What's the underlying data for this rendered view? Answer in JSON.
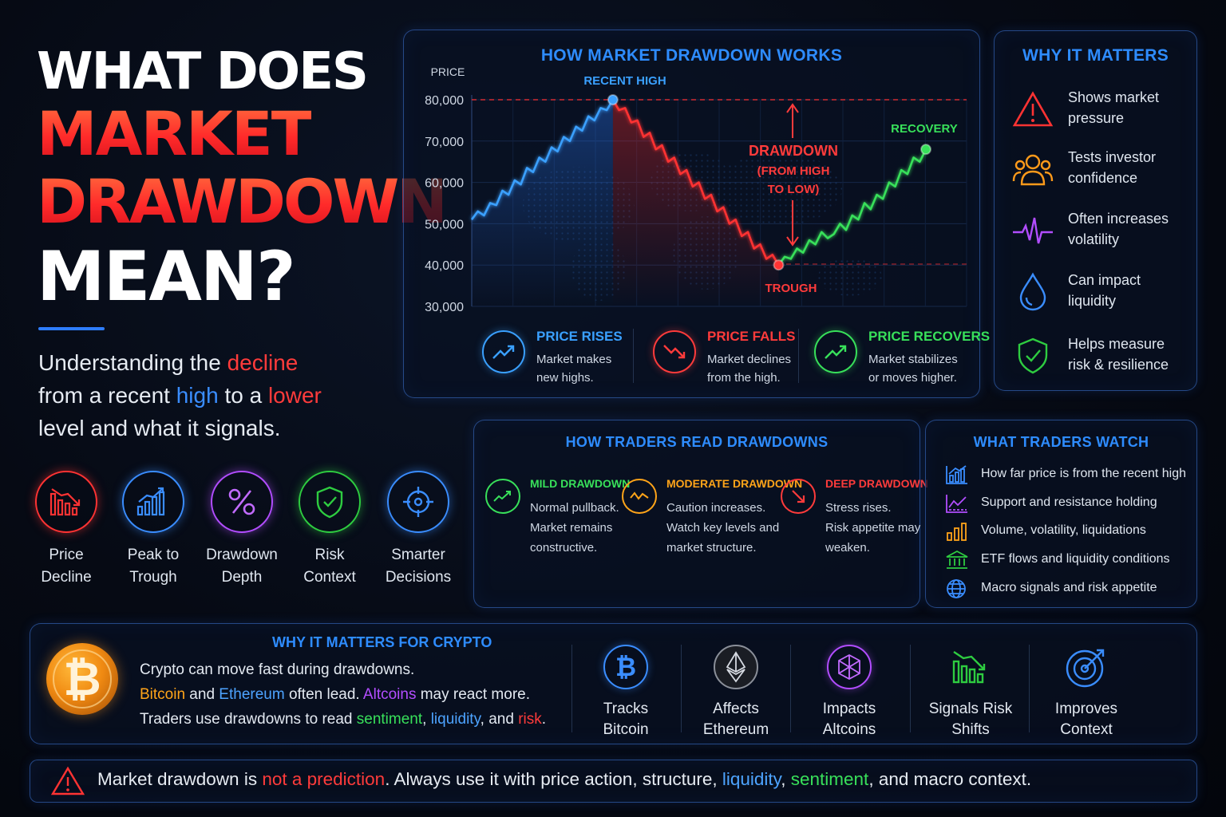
{
  "hero": {
    "line1": "WHAT DOES",
    "line2": "MARKET",
    "line3": "DRAWDOWN",
    "line4": "MEAN?",
    "sub_part1": "Understanding the ",
    "sub_decline": "decline",
    "sub_part2": "from a recent ",
    "sub_high": "high",
    "sub_part3": " to a ",
    "sub_lower": "lower",
    "sub_part4": "level and what it signals."
  },
  "concepts": [
    {
      "line1": "Price",
      "line2": "Decline",
      "icon": "bar-decline-icon",
      "color": "#ff3333"
    },
    {
      "line1": "Peak to",
      "line2": "Trough",
      "icon": "bar-growth-icon",
      "color": "#3a8dff"
    },
    {
      "line1": "Drawdown",
      "line2": "Depth",
      "icon": "percent-icon",
      "color": "#b24dff"
    },
    {
      "line1": "Risk",
      "line2": "Context",
      "icon": "shield-check-icon",
      "color": "#2ecc40"
    },
    {
      "line1": "Smarter",
      "line2": "Decisions",
      "icon": "target-icon",
      "color": "#3a8dff"
    }
  ],
  "chart_panel": {
    "title": "HOW MARKET DRAWDOWN WORKS",
    "ylabel": "PRICE",
    "ann_recent_high": "RECENT HIGH",
    "ann_recovery": "RECOVERY",
    "ann_drawdown": "DRAWDOWN",
    "ann_from_high": "(FROM HIGH",
    "ann_to_low": "TO LOW)",
    "ann_trough": "TROUGH",
    "legend": [
      {
        "title": "PRICE RISES",
        "line1": "Market makes",
        "line2": "new highs.",
        "color": "#3aa0ff"
      },
      {
        "title": "PRICE FALLS",
        "line1": "Market declines",
        "line2": "from the high.",
        "color": "#ff3b3b"
      },
      {
        "title": "PRICE RECOVERS",
        "line1": "Market stabilizes",
        "line2": "or moves higher.",
        "color": "#38e05a"
      }
    ]
  },
  "chart_data": {
    "type": "line",
    "title": "HOW MARKET DRAWDOWN WORKS",
    "ylabel": "PRICE",
    "xlabel": "",
    "yticks": [
      "80,000",
      "70,000",
      "60,000",
      "50,000",
      "40,000",
      "30,000"
    ],
    "ylim": [
      30000,
      80000
    ],
    "grid": true,
    "series": [
      {
        "name": "",
        "color": "#3aa0ff",
        "points": [
          [
            0,
            51000
          ],
          [
            1,
            53000
          ],
          [
            2,
            52000
          ],
          [
            3,
            55000
          ],
          [
            4,
            54500
          ],
          [
            5,
            58000
          ],
          [
            6,
            57000
          ],
          [
            7,
            60500
          ],
          [
            8,
            59500
          ],
          [
            9,
            63500
          ],
          [
            10,
            62500
          ],
          [
            11,
            66000
          ],
          [
            12,
            65000
          ],
          [
            13,
            68500
          ],
          [
            14,
            67500
          ],
          [
            15,
            71000
          ],
          [
            16,
            70000
          ],
          [
            17,
            73500
          ],
          [
            18,
            72500
          ],
          [
            19,
            76000
          ],
          [
            20,
            75000
          ],
          [
            21,
            78000
          ],
          [
            22,
            77500
          ],
          [
            23,
            80000
          ]
        ]
      },
      {
        "name": "",
        "color": "#ff3333",
        "points": [
          [
            23,
            80000
          ],
          [
            24,
            77500
          ],
          [
            25,
            78000
          ],
          [
            26,
            74500
          ],
          [
            27,
            75000
          ],
          [
            28,
            71000
          ],
          [
            29,
            72000
          ],
          [
            30,
            68000
          ],
          [
            31,
            69000
          ],
          [
            32,
            65000
          ],
          [
            33,
            66000
          ],
          [
            34,
            62000
          ],
          [
            35,
            63000
          ],
          [
            36,
            59000
          ],
          [
            37,
            60000
          ],
          [
            38,
            56000
          ],
          [
            39,
            57000
          ],
          [
            40,
            53000
          ],
          [
            41,
            54000
          ],
          [
            42,
            50000
          ],
          [
            43,
            51000
          ],
          [
            44,
            47000
          ],
          [
            45,
            48000
          ],
          [
            46,
            44000
          ],
          [
            47,
            45000
          ],
          [
            48,
            41500
          ],
          [
            49,
            42500
          ],
          [
            50,
            40000
          ]
        ]
      },
      {
        "name": "",
        "color": "#38e05a",
        "points": [
          [
            50,
            40000
          ],
          [
            51,
            42000
          ],
          [
            52,
            41500
          ],
          [
            53,
            44000
          ],
          [
            54,
            43000
          ],
          [
            55,
            46000
          ],
          [
            56,
            45000
          ],
          [
            57,
            48000
          ],
          [
            58,
            46500
          ],
          [
            59,
            47500
          ],
          [
            60,
            50000
          ],
          [
            61,
            48500
          ],
          [
            62,
            52000
          ],
          [
            63,
            51000
          ],
          [
            64,
            55000
          ],
          [
            65,
            53500
          ],
          [
            66,
            57000
          ],
          [
            67,
            56000
          ],
          [
            68,
            60000
          ],
          [
            69,
            59000
          ],
          [
            70,
            63000
          ],
          [
            71,
            62000
          ],
          [
            72,
            66000
          ],
          [
            73,
            65000
          ],
          [
            74,
            68000
          ]
        ]
      }
    ],
    "annotations": [
      "RECENT HIGH",
      "RECOVERY",
      "DRAWDOWN",
      "(FROM HIGH",
      "TO LOW)",
      "TROUGH"
    ]
  },
  "why_matters": {
    "title": "WHY IT MATTERS",
    "items": [
      {
        "line1": "Shows market",
        "line2": "pressure",
        "icon": "warning-triangle-icon",
        "color": "#ff3333"
      },
      {
        "line1": "Tests investor",
        "line2": "confidence",
        "icon": "people-icon",
        "color": "#ff9a1a"
      },
      {
        "line1": "Often increases",
        "line2": "volatility",
        "icon": "pulse-icon",
        "color": "#b24dff"
      },
      {
        "line1": "Can impact",
        "line2": "liquidity",
        "icon": "droplet-icon",
        "color": "#3a8dff"
      },
      {
        "line1": "Helps measure",
        "line2": "risk & resilience",
        "icon": "shield-check-icon",
        "color": "#2ecc40"
      }
    ]
  },
  "traders_read": {
    "title": "HOW TRADERS READ DRAWDOWNS",
    "items": [
      {
        "title": "MILD DRAWDOWN",
        "line1": "Normal pullback.",
        "line2": "Market remains",
        "line3": "constructive.",
        "color": "#38e05a"
      },
      {
        "title": "MODERATE DRAWDOWN",
        "line1": "Caution increases.",
        "line2": "Watch key levels and",
        "line3": "market structure.",
        "color": "#ffa419"
      },
      {
        "title": "DEEP DRAWDOWN",
        "line1": "Stress rises.",
        "line2": "Risk appetite may",
        "line3": "weaken.",
        "color": "#ff3b3b"
      }
    ]
  },
  "traders_watch": {
    "title": "WHAT TRADERS WATCH",
    "items": [
      {
        "text": "How far price is from the recent high",
        "icon": "chart-bars-icon",
        "color": "#3a8dff"
      },
      {
        "text": "Support and resistance holding",
        "icon": "line-chart-icon",
        "color": "#b24dff"
      },
      {
        "text": "Volume, volatility, liquidations",
        "icon": "volume-bars-icon",
        "color": "#ffa419"
      },
      {
        "text": "ETF flows and liquidity conditions",
        "icon": "bank-icon",
        "color": "#2ecc40"
      },
      {
        "text": "Macro signals and risk appetite",
        "icon": "globe-icon",
        "color": "#3a8dff"
      }
    ]
  },
  "crypto": {
    "title": "WHY IT MATTERS FOR CRYPTO",
    "line1": "Crypto can move fast during drawdowns.",
    "bitcoin": "Bitcoin",
    "and1": " and ",
    "ethereum": "Ethereum",
    "often_lead": " often lead. ",
    "altcoins": "Altcoins",
    "may_react": " may react more.",
    "line3_start": "Traders use drawdowns to read ",
    "sentiment": "sentiment",
    "comma1": ", ",
    "liquidity": "liquidity",
    "and2": ", and ",
    "risk": "risk",
    "period": ".",
    "items": [
      {
        "line1": "Tracks",
        "line2": "Bitcoin",
        "icon": "bitcoin-icon",
        "color": "#3a8dff"
      },
      {
        "line1": "Affects",
        "line2": "Ethereum",
        "icon": "ethereum-icon",
        "color": "#c8ccd4"
      },
      {
        "line1": "Impacts",
        "line2": "Altcoins",
        "icon": "cube-network-icon",
        "color": "#b24dff"
      },
      {
        "line1": "Signals Risk",
        "line2": "Shifts",
        "icon": "bar-decline-icon",
        "color": "#2ecc40"
      },
      {
        "line1": "Improves",
        "line2": "Context",
        "icon": "target-arrow-icon",
        "color": "#3a8dff"
      }
    ]
  },
  "footer": {
    "part1": "Market drawdown is ",
    "not_prediction": "not a prediction",
    "part2": ". Always use it with price action, structure, ",
    "liquidity": "liquidity",
    "comma": ", ",
    "sentiment": "sentiment",
    "part3": ", and macro context."
  }
}
